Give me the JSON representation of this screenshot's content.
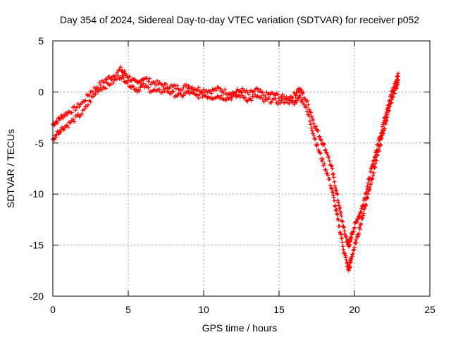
{
  "chart_data": {
    "type": "scatter",
    "title": "Day 354 of 2024, Sidereal Day-to-day VTEC variation (SDTVAR) for receiver p052",
    "xlabel": "GPS time / hours",
    "ylabel": "SDTVAR / TECUs",
    "xlim": [
      0,
      25
    ],
    "ylim": [
      -20,
      5
    ],
    "xticks": [
      0,
      5,
      10,
      15,
      20,
      25
    ],
    "yticks": [
      -20,
      -15,
      -10,
      -5,
      0,
      5
    ],
    "xtick_labels": [
      "0",
      "5",
      "10",
      "15",
      "20",
      "25"
    ],
    "ytick_labels": [
      "-20",
      "-15",
      "-10",
      "-5",
      "0",
      "5"
    ],
    "grid": true,
    "marker": "+",
    "series_color": "#ff0000",
    "series": [
      {
        "name": "p052",
        "note": "two nearly parallel traces of + markers (approximate readings)",
        "traces": [
          {
            "x": [
              0.0,
              0.3,
              0.6,
              1.0,
              1.5,
              2.0,
              2.5,
              3.0,
              3.5,
              4.0,
              4.5,
              4.8,
              5.2,
              5.6,
              6.0,
              6.5,
              7.0,
              7.5,
              8.0,
              8.5,
              9.0,
              9.5,
              10.0,
              10.5,
              11.0,
              11.5,
              12.0,
              12.5,
              13.0,
              13.5,
              14.0,
              14.5,
              15.0,
              15.5,
              16.0,
              16.3,
              16.6,
              17.0,
              17.3,
              17.6,
              17.9,
              18.2,
              18.5,
              18.7,
              18.9,
              19.1,
              19.3,
              19.5,
              19.6,
              19.7,
              19.8,
              20.0,
              20.2,
              20.4,
              20.6,
              20.8,
              21.0,
              21.2,
              21.4,
              21.6,
              21.8,
              22.0,
              22.2,
              22.4,
              22.6,
              22.8,
              22.9
            ],
            "y": [
              -3.2,
              -2.8,
              -2.4,
              -2.0,
              -1.6,
              -1.0,
              0.0,
              0.6,
              1.2,
              1.6,
              2.2,
              1.8,
              1.2,
              0.8,
              1.4,
              1.0,
              0.8,
              0.6,
              0.5,
              0.4,
              0.6,
              0.3,
              0.2,
              0.1,
              0.3,
              0.0,
              -0.1,
              0.2,
              -0.2,
              0.2,
              -0.3,
              -0.2,
              -0.4,
              -0.6,
              -0.3,
              0.3,
              -0.2,
              -1.5,
              -3.0,
              -4.0,
              -5.0,
              -6.0,
              -7.5,
              -9.0,
              -10.5,
              -12.0,
              -13.5,
              -14.5,
              -15.0,
              -14.8,
              -14.0,
              -13.2,
              -12.4,
              -11.8,
              -10.8,
              -9.6,
              -8.4,
              -7.2,
              -6.0,
              -4.8,
              -3.8,
              -2.6,
              -1.4,
              -0.4,
              0.4,
              1.2,
              1.8
            ]
          },
          {
            "x": [
              0.0,
              0.3,
              0.6,
              1.0,
              1.5,
              2.0,
              2.5,
              3.0,
              3.5,
              4.0,
              4.5,
              4.8,
              5.2,
              5.6,
              6.0,
              6.5,
              7.0,
              7.5,
              8.0,
              8.5,
              9.0,
              9.5,
              10.0,
              10.5,
              11.0,
              11.5,
              12.0,
              12.5,
              13.0,
              13.5,
              14.0,
              14.5,
              15.0,
              15.5,
              16.0,
              16.3,
              16.6,
              17.0,
              17.3,
              17.6,
              17.9,
              18.2,
              18.5,
              18.7,
              18.9,
              19.1,
              19.3,
              19.5,
              19.6,
              19.7,
              19.8,
              20.0,
              20.2,
              20.4,
              20.6,
              20.8,
              21.0,
              21.2,
              21.4,
              21.6,
              21.8,
              22.0,
              22.2,
              22.4,
              22.6,
              22.8,
              22.9
            ],
            "y": [
              -4.8,
              -4.0,
              -3.6,
              -3.2,
              -2.6,
              -2.0,
              -0.8,
              0.2,
              0.6,
              1.0,
              1.6,
              1.2,
              0.6,
              0.2,
              0.6,
              0.2,
              0.0,
              0.2,
              -0.2,
              -0.4,
              0.0,
              -0.4,
              -0.3,
              -0.5,
              -0.4,
              -0.6,
              -0.5,
              -0.3,
              -0.8,
              -0.4,
              -0.9,
              -0.8,
              -1.0,
              -0.8,
              -1.2,
              -0.4,
              -0.9,
              -2.5,
              -4.2,
              -5.6,
              -6.8,
              -8.0,
              -9.5,
              -11.0,
              -12.5,
              -14.0,
              -15.5,
              -16.8,
              -17.4,
              -17.0,
              -16.2,
              -15.2,
              -14.2,
              -13.0,
              -11.8,
              -10.6,
              -9.4,
              -8.2,
              -7.0,
              -5.8,
              -4.6,
              -3.4,
              -2.2,
              -1.0,
              -0.2,
              0.6,
              1.2
            ]
          }
        ]
      }
    ]
  }
}
